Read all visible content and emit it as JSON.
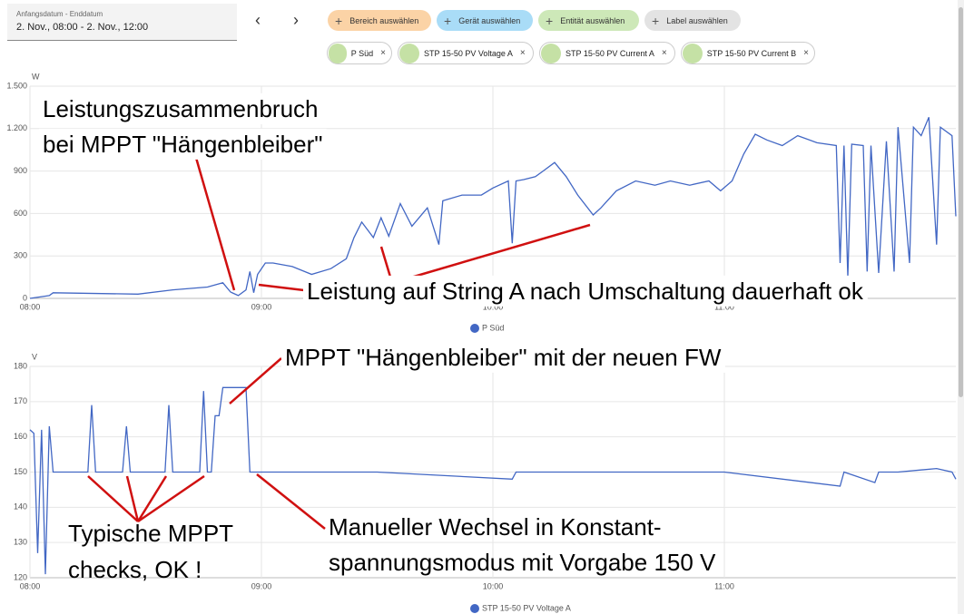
{
  "header": {
    "date_label": "Anfangsdatum - Enddatum",
    "date_value": "2. Nov., 08:00 - 2. Nov., 12:00",
    "buttons": [
      "Bereich auswählen",
      "Gerät auswählen",
      "Entität auswählen",
      "Label auswählen"
    ],
    "chips": [
      "P Süd",
      "STP 15-50 PV Voltage A",
      "STP 15-50 PV Current A",
      "STP 15-50 PV Current B"
    ]
  },
  "chart_data": [
    {
      "type": "line",
      "y_label": "W",
      "xlim": [
        "08:00",
        "12:00"
      ],
      "xticks": [
        "08:00",
        "09:00",
        "10:00",
        "11:00"
      ],
      "ylim": [
        0,
        1500
      ],
      "yticks": [
        0,
        300,
        600,
        900,
        {
          "value": 1200,
          "label": "1.200"
        },
        {
          "value": 1500,
          "label": "1.500"
        }
      ],
      "grid": true,
      "x": [
        "08:00",
        "08:05",
        "08:06",
        "08:28",
        "08:37",
        "08:46",
        "08:50",
        "08:52",
        "08:54",
        "08:56",
        "08:57",
        "08:58",
        "08:59",
        "09:01",
        "09:03",
        "09:08",
        "09:13",
        "09:18",
        "09:22",
        "09:24",
        "09:26",
        "09:29",
        "09:31",
        "09:33",
        "09:36",
        "09:39",
        "09:43",
        "09:46",
        "09:47",
        "09:52",
        "09:57",
        "10:00",
        "10:04",
        "10:05",
        "10:06",
        "10:08",
        "10:11",
        "10:13",
        "10:16",
        "10:19",
        "10:22",
        "10:26",
        "10:28",
        "10:32",
        "10:37",
        "10:42",
        "10:46",
        "10:51",
        "10:56",
        "10:59",
        "11:02",
        "11:05",
        "11:08",
        "11:11",
        "11:15",
        "11:19",
        "11:24",
        "11:29",
        "11:30",
        "11:31",
        "11:32",
        "11:33",
        "11:36",
        "11:37",
        "11:38",
        "11:40",
        "11:42",
        "11:44",
        "11:45",
        "11:48",
        "11:49",
        "11:51",
        "11:53",
        "11:55",
        "11:56",
        "11:59",
        "12:00"
      ],
      "series": [
        {
          "name": "P Süd",
          "color": "#4267c4",
          "values": [
            0,
            20,
            40,
            30,
            60,
            80,
            110,
            45,
            20,
            60,
            190,
            40,
            170,
            250,
            250,
            225,
            170,
            210,
            280,
            430,
            540,
            430,
            570,
            440,
            670,
            510,
            640,
            380,
            690,
            730,
            730,
            780,
            830,
            390,
            830,
            840,
            860,
            900,
            960,
            860,
            730,
            590,
            640,
            760,
            830,
            800,
            830,
            800,
            830,
            760,
            830,
            1020,
            1160,
            1120,
            1080,
            1150,
            1100,
            1080,
            250,
            1080,
            150,
            1090,
            1080,
            190,
            1080,
            180,
            1110,
            190,
            1210,
            250,
            1210,
            1150,
            1280,
            380,
            1210,
            1150,
            580
          ]
        }
      ],
      "annotations": [
        {
          "text": [
            "Leistungszusammenbruch",
            "bei MPPT \"Hängenbleiber\""
          ]
        },
        {
          "text": [
            "Leistung auf String A nach Umschaltung dauerhaft ok"
          ]
        }
      ]
    },
    {
      "type": "line",
      "y_label": "V",
      "xlim": [
        "08:00",
        "12:00"
      ],
      "xticks": [
        "08:00",
        "09:00",
        "10:00",
        "11:00"
      ],
      "ylim": [
        120,
        180
      ],
      "yticks": [
        120,
        130,
        140,
        150,
        160,
        170,
        180
      ],
      "grid": true,
      "x": [
        "08:00",
        "08:01",
        "08:02",
        "08:03",
        "08:04",
        "08:05",
        "08:06",
        "08:15",
        "08:16",
        "08:17",
        "08:24",
        "08:25",
        "08:26",
        "08:35",
        "08:36",
        "08:37",
        "08:44",
        "08:45",
        "08:46",
        "08:47",
        "08:48",
        "08:49",
        "08:50",
        "08:56",
        "08:57",
        "09:30",
        "10:05",
        "10:06",
        "11:00",
        "11:30",
        "11:31",
        "11:39",
        "11:40",
        "11:45",
        "11:55",
        "11:59",
        "12:00"
      ],
      "series": [
        {
          "name": "STP 15-50 PV Voltage A",
          "color": "#4267c4",
          "values": [
            162,
            161,
            127,
            162,
            121,
            163,
            150,
            150,
            169,
            150,
            150,
            163,
            150,
            150,
            169,
            150,
            150,
            173,
            150,
            150,
            166,
            166,
            174,
            174,
            150,
            150,
            148,
            150,
            150,
            146,
            150,
            147,
            150,
            150,
            151,
            150,
            148
          ]
        }
      ],
      "annotations": [
        {
          "text": [
            "MPPT \"Hängenbleiber\" mit der neuen FW"
          ]
        },
        {
          "text": [
            "Typische MPPT",
            "checks, OK !"
          ]
        },
        {
          "text": [
            "Manueller Wechsel in Konstant-",
            "spannungsmodus mit Vorgabe 150 V"
          ]
        }
      ]
    }
  ]
}
